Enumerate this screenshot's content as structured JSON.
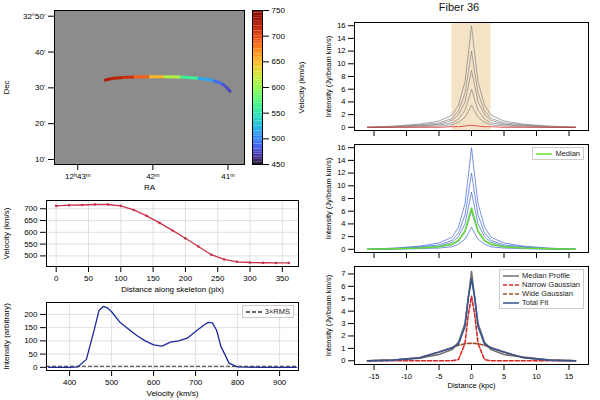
{
  "chart_data": [
    {
      "type": "map",
      "x_label": "RA",
      "y_label": "Dec",
      "xlim": [
        43.31,
        40.78
      ],
      "xticks": [
        {
          "value": 43,
          "label": "12ʰ43ᵐ"
        },
        {
          "value": 42,
          "label": "42ᵐ"
        },
        {
          "value": 41,
          "label": "41ᵐ"
        }
      ],
      "ylim": [
        8.6,
        51.6
      ],
      "yticks": [
        {
          "value": 50,
          "label": "32°50'"
        },
        {
          "value": 40,
          "label": "40'"
        },
        {
          "value": 30,
          "label": "30'"
        },
        {
          "value": 20,
          "label": "20'"
        },
        {
          "value": 10,
          "label": "10'"
        }
      ],
      "x": [
        42.65,
        42.55,
        42.4,
        42.25,
        42.05,
        41.85,
        41.63,
        41.4,
        41.2,
        41.08,
        41.02,
        40.96
      ],
      "y": [
        32.1,
        32.6,
        32.9,
        33.0,
        33.1,
        33.1,
        33.0,
        32.7,
        32.1,
        31.2,
        30.2,
        28.8
      ],
      "velocity": [
        725,
        720,
        712,
        690,
        650,
        610,
        560,
        515,
        490,
        478,
        472,
        468
      ],
      "colorbar": {
        "label": "Velocity (km/s)",
        "range": [
          450,
          750
        ],
        "ticks": [
          450,
          500,
          550,
          600,
          650,
          700,
          750
        ]
      }
    },
    {
      "type": "line",
      "x_label": "Distance along skeleton (pix)",
      "y_label": "Velocity (km/s)",
      "xlim": [
        -15,
        375
      ],
      "xticks": [
        0,
        50,
        100,
        150,
        200,
        250,
        300,
        350
      ],
      "ylim": [
        455,
        735
      ],
      "yticks": [
        500,
        550,
        600,
        650,
        700
      ],
      "grid": true,
      "x": [
        0,
        20,
        40,
        60,
        80,
        100,
        120,
        140,
        160,
        180,
        200,
        220,
        240,
        260,
        280,
        300,
        320,
        340,
        360
      ],
      "series": [
        {
          "color": "#c8324b",
          "marker": "dot",
          "values": [
            712,
            715,
            716,
            718,
            718,
            712,
            695,
            670,
            640,
            608,
            575,
            540,
            505,
            485,
            475,
            472,
            471,
            470,
            470
          ]
        }
      ]
    },
    {
      "type": "line",
      "x_label": "Velocity (km/s)",
      "y_label": "Intensity (arbitrary)",
      "xlim": [
        345,
        945
      ],
      "xticks": [
        400,
        500,
        600,
        700,
        800,
        900
      ],
      "ylim": [
        -12,
        245
      ],
      "yticks": [
        0,
        50,
        100,
        150,
        200
      ],
      "grid": true,
      "legend": "upper right",
      "x": [
        350,
        400,
        420,
        440,
        460,
        470,
        480,
        490,
        500,
        520,
        540,
        560,
        580,
        600,
        620,
        640,
        660,
        680,
        700,
        720,
        730,
        740,
        750,
        760,
        780,
        800,
        850,
        900,
        940
      ],
      "series": [
        {
          "color": "#1a2a9c",
          "values": [
            0,
            0,
            2,
            30,
            150,
            215,
            230,
            225,
            210,
            170,
            145,
            120,
            100,
            85,
            80,
            95,
            100,
            110,
            135,
            160,
            170,
            168,
            140,
            80,
            15,
            2,
            0,
            0,
            0
          ]
        }
      ],
      "hline": {
        "name": "3×RMS",
        "value": 4,
        "color": "#333333",
        "line_style": "dashed"
      }
    },
    {
      "type": "fibers",
      "title": "Fiber 36",
      "y_label": "Intensity (Jy/beam km/s)",
      "tick_labels": "y",
      "xlim": [
        -18,
        18
      ],
      "xticks": [
        -15,
        -10,
        -5,
        0,
        5,
        10,
        15
      ],
      "ylim": [
        -0.5,
        16.5
      ],
      "yticks": [
        0,
        2,
        4,
        6,
        8,
        10,
        12,
        14,
        16
      ],
      "band": {
        "range": [
          -3,
          3
        ],
        "color": "#f3dcb8"
      },
      "x": [
        -16,
        -12,
        -8,
        -5,
        -3,
        -2,
        -1,
        -0.5,
        0,
        0.5,
        1,
        2,
        3,
        5,
        8,
        12,
        16
      ],
      "series": [
        {
          "color": "#8a8a8a",
          "values": [
            0,
            0.2,
            0.5,
            1,
            1.9,
            3.5,
            7.2,
            11.5,
            16,
            11.5,
            7.2,
            3.5,
            1.9,
            1,
            0.5,
            0.2,
            0
          ]
        },
        {
          "color": "#8a8a8a",
          "values": [
            0,
            0.1,
            0.4,
            0.7,
            1.4,
            2.6,
            5.4,
            8.6,
            12,
            8.6,
            5.4,
            2.6,
            1.4,
            0.7,
            0.4,
            0.1,
            0
          ]
        },
        {
          "color": "#8a8a8a",
          "values": [
            0,
            0.1,
            0.3,
            0.5,
            1.1,
            2,
            4,
            6.5,
            9,
            6.5,
            4,
            2,
            1.1,
            0.5,
            0.3,
            0.1,
            0
          ]
        },
        {
          "color": "#8a8a8a",
          "values": [
            0,
            0.1,
            0.2,
            0.4,
            0.7,
            1.3,
            2.7,
            4.3,
            6,
            4.3,
            2.7,
            1.3,
            0.7,
            0.4,
            0.2,
            0.1,
            0
          ]
        },
        {
          "color": "#8a8a8a",
          "values": [
            0,
            0,
            0.1,
            0.2,
            0.4,
            0.8,
            1.6,
            2.5,
            3.5,
            2.5,
            1.6,
            0.8,
            0.4,
            0.2,
            0.1,
            0,
            0
          ]
        },
        {
          "color": "#d62728",
          "values": [
            0,
            0,
            0,
            0,
            0.1,
            0.1,
            0.2,
            0.3,
            0.3,
            0.3,
            0.2,
            0.1,
            0.1,
            0,
            0,
            0,
            0
          ]
        }
      ]
    },
    {
      "type": "fibers",
      "y_label": "Intensity (Jy/beam km/s)",
      "tick_labels": "y",
      "legend": "upper right",
      "xlim": [
        -18,
        18
      ],
      "xticks": [
        -15,
        -10,
        -5,
        0,
        5,
        10,
        15
      ],
      "ylim": [
        -0.5,
        16.5
      ],
      "yticks": [
        0,
        2,
        4,
        6,
        8,
        10,
        12,
        14,
        16
      ],
      "x": [
        -16,
        -12,
        -8,
        -5,
        -3,
        -2,
        -1,
        -0.5,
        0,
        0.5,
        1,
        2,
        3,
        5,
        8,
        12,
        16
      ],
      "series": [
        {
          "color": "#4a6fd8",
          "values": [
            0,
            0.2,
            0.5,
            1,
            1.9,
            3.5,
            7.2,
            11.5,
            16,
            11.5,
            7.2,
            3.5,
            1.9,
            1,
            0.5,
            0.2,
            0
          ]
        },
        {
          "color": "#4a6fd8",
          "values": [
            0,
            0.1,
            0.4,
            0.7,
            1.4,
            2.6,
            5.4,
            8.6,
            12,
            8.6,
            5.4,
            2.6,
            1.4,
            0.7,
            0.4,
            0.1,
            0
          ]
        },
        {
          "color": "#4a6fd8",
          "values": [
            0,
            0.1,
            0.3,
            0.5,
            1.1,
            2,
            4,
            6.5,
            9,
            6.5,
            4,
            2,
            1.1,
            0.5,
            0.3,
            0.1,
            0
          ]
        },
        {
          "color": "#4a6fd8",
          "values": [
            0,
            0.1,
            0.2,
            0.4,
            0.7,
            1.3,
            2.7,
            4.3,
            6,
            4.3,
            2.7,
            1.3,
            0.7,
            0.4,
            0.2,
            0.1,
            0
          ]
        },
        {
          "color": "#4a6fd8",
          "values": [
            0,
            0,
            0.1,
            0.2,
            0.4,
            0.8,
            1.6,
            2.5,
            3.5,
            2.5,
            1.6,
            0.8,
            0.4,
            0.2,
            0.1,
            0,
            0
          ]
        },
        {
          "name": "Median",
          "color": "#66dd33",
          "values": [
            0,
            0.1,
            0.2,
            0.4,
            0.8,
            1.4,
            2.9,
            4.7,
            6.5,
            4.7,
            2.9,
            1.4,
            0.8,
            0.4,
            0.2,
            0.1,
            0
          ]
        }
      ]
    },
    {
      "type": "fibers",
      "x_label": "Distance (kpc)",
      "y_label": "Intensity (Jy/beam km/s)",
      "legend": "upper right",
      "xlim": [
        -18,
        18
      ],
      "xticks": [
        -15,
        -10,
        -5,
        0,
        5,
        10,
        15
      ],
      "ylim": [
        -0.3,
        7.6
      ],
      "yticks": [
        0,
        1,
        2,
        3,
        4,
        5,
        6,
        7
      ],
      "x": [
        -16,
        -12,
        -8,
        -5,
        -3,
        -2,
        -1,
        -0.5,
        0,
        0.5,
        1,
        2,
        3,
        5,
        8,
        12,
        16
      ],
      "series": [
        {
          "name": "Median Profile",
          "color": "#707070",
          "values": [
            0,
            0.05,
            0.2,
            0.5,
            0.9,
            1.5,
            3,
            5,
            7.2,
            5,
            3,
            1.5,
            0.9,
            0.5,
            0.3,
            0.05,
            0
          ]
        },
        {
          "name": "Narrow Gaussian",
          "color": "#d62728",
          "line_style": "dashed",
          "values": [
            0,
            0,
            0,
            0,
            0,
            0.1,
            1.4,
            3.7,
            5.2,
            3.7,
            1.4,
            0.1,
            0,
            0,
            0,
            0,
            0
          ]
        },
        {
          "name": "Wide Gaussian",
          "color": "#a0522d",
          "line_style": "dashed",
          "values": [
            0,
            0.05,
            0.25,
            0.7,
            1.05,
            1.25,
            1.37,
            1.4,
            1.4,
            1.4,
            1.37,
            1.25,
            1.05,
            0.7,
            0.25,
            0.05,
            0
          ]
        },
        {
          "name": "Total Fit",
          "color": "#34558f",
          "values": [
            0,
            0.05,
            0.25,
            0.7,
            1.05,
            1.35,
            2.77,
            5.1,
            6.6,
            5.1,
            2.77,
            1.35,
            1.05,
            0.7,
            0.25,
            0.05,
            0
          ]
        }
      ]
    }
  ]
}
